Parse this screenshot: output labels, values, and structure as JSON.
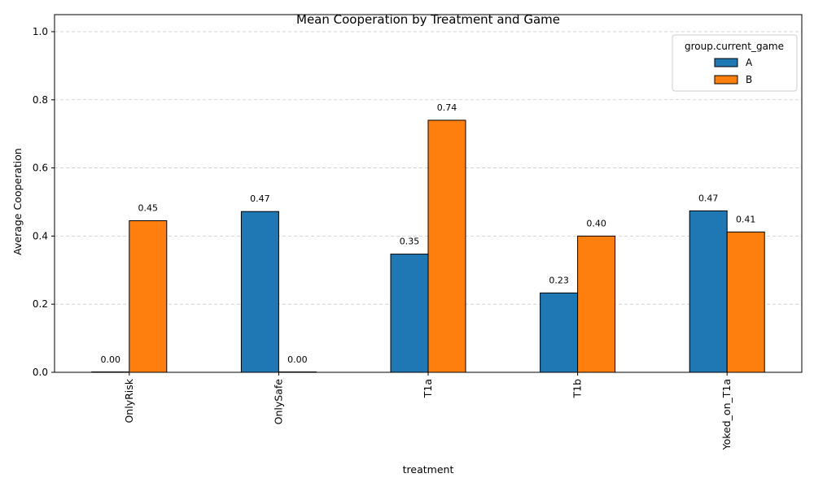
{
  "chart_data": {
    "type": "bar",
    "title": "Mean Cooperation by Treatment and Game",
    "xlabel": "treatment",
    "ylabel": "Average Cooperation",
    "categories": [
      "OnlyRisk",
      "OnlySafe",
      "T1a",
      "T1b",
      "Yoked_on_T1a"
    ],
    "series": [
      {
        "name": "A",
        "color": "#1f77b4",
        "values": [
          0.0,
          0.472,
          0.347,
          0.233,
          0.474
        ],
        "labels": [
          "0.00",
          "0.47",
          "0.35",
          "0.23",
          "0.47"
        ]
      },
      {
        "name": "B",
        "color": "#ff7f0e",
        "values": [
          0.445,
          0.0,
          0.74,
          0.4,
          0.412
        ],
        "labels": [
          "0.45",
          "0.00",
          "0.74",
          "0.40",
          "0.41"
        ]
      }
    ],
    "ylim": [
      0,
      1.05
    ],
    "yticks": [
      0.0,
      0.2,
      0.4,
      0.6,
      0.8,
      1.0
    ],
    "ytick_labels": [
      "0.0",
      "0.2",
      "0.4",
      "0.6",
      "0.8",
      "1.0"
    ],
    "grid": "y-dashed",
    "legend": {
      "title": "group.current_game",
      "placement": "top-right"
    }
  }
}
